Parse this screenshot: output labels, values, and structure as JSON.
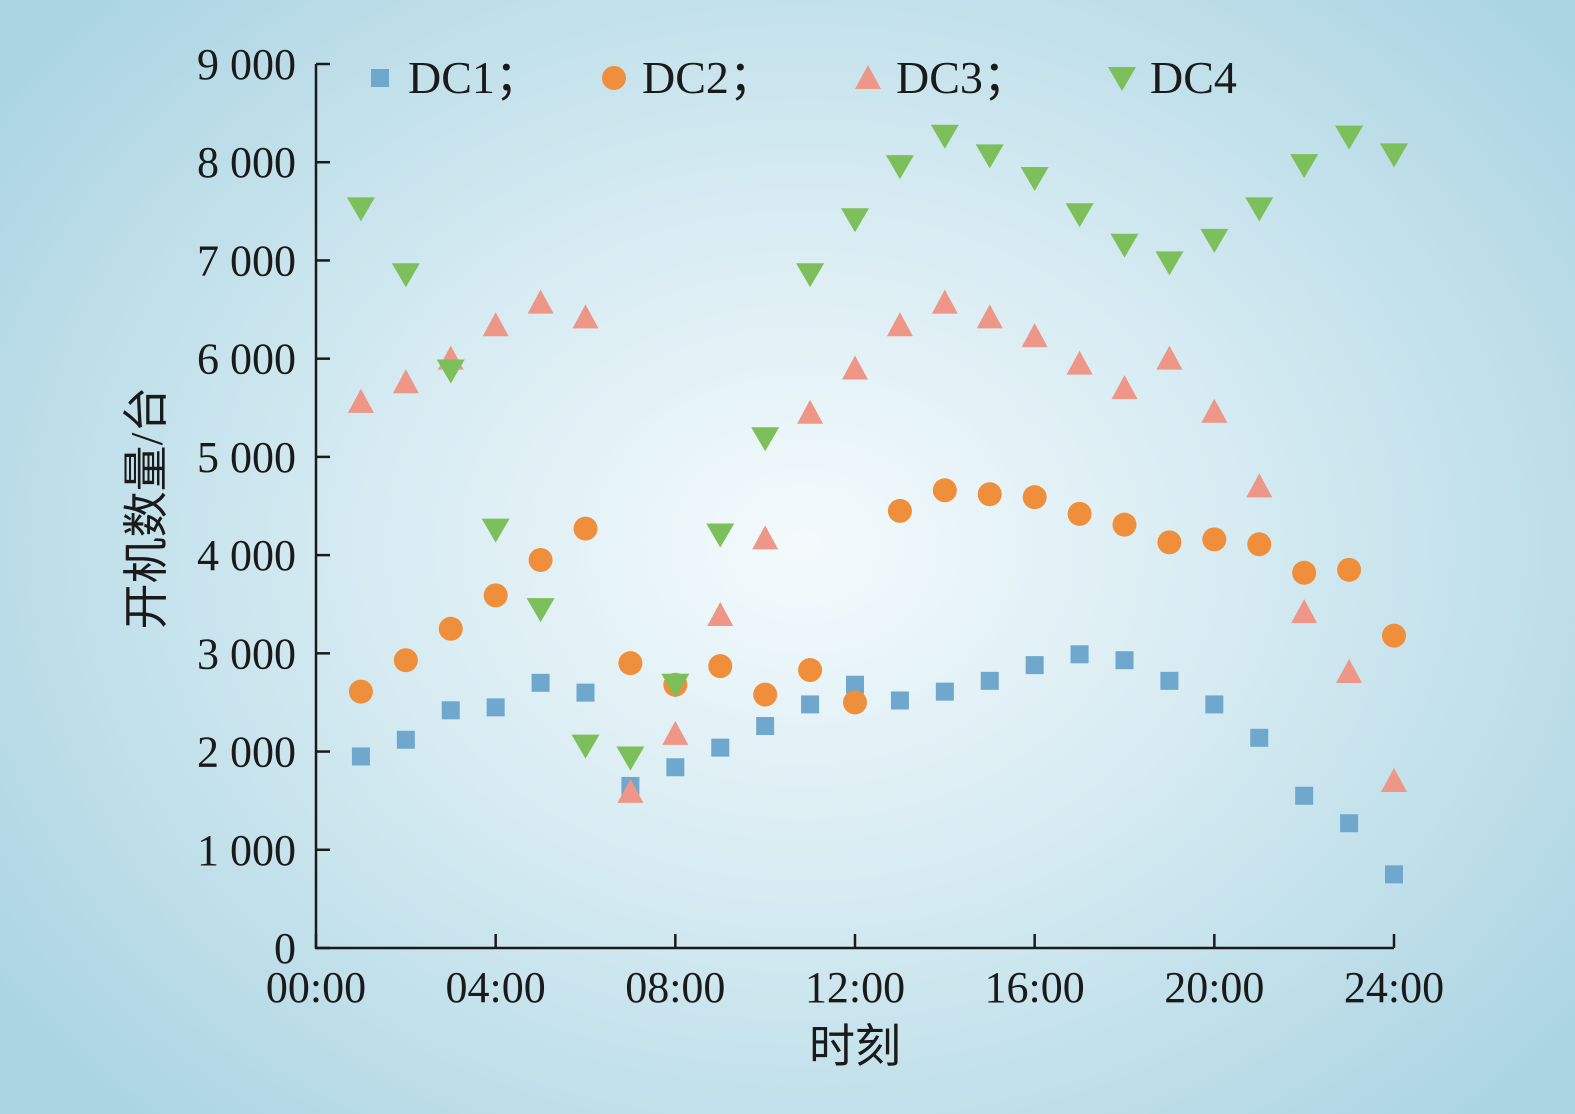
{
  "chart_data": {
    "type": "scatter",
    "title": "",
    "xlabel": "时刻",
    "ylabel": "开机数量/台",
    "xlim": [
      0,
      24
    ],
    "ylim": [
      0,
      9000
    ],
    "x_tick_labels": [
      "00:00",
      "04:00",
      "08:00",
      "12:00",
      "16:00",
      "20:00",
      "24:00"
    ],
    "y_tick_labels": [
      "0",
      "1 000",
      "2 000",
      "3 000",
      "4 000",
      "5 000",
      "6 000",
      "7 000",
      "8 000",
      "9 000"
    ],
    "grid": false,
    "legend_position": "top",
    "x": [
      1,
      2,
      3,
      4,
      5,
      6,
      7,
      8,
      9,
      10,
      11,
      12,
      13,
      14,
      15,
      16,
      17,
      18,
      19,
      20,
      21,
      22,
      23,
      24
    ],
    "series": [
      {
        "name": "DC1；",
        "marker": "square",
        "color": "#6fa8cc",
        "values": [
          1950,
          2120,
          2420,
          2450,
          2700,
          2600,
          1650,
          1840,
          2040,
          2260,
          2480,
          2680,
          2520,
          2610,
          2720,
          2880,
          2990,
          2930,
          2720,
          2480,
          2140,
          1550,
          1270,
          750
        ]
      },
      {
        "name": "DC2；",
        "marker": "circle",
        "color": "#ef8e3b",
        "values": [
          2610,
          2930,
          3250,
          3590,
          3950,
          4270,
          2900,
          2680,
          2870,
          2580,
          2830,
          2500,
          4450,
          4660,
          4620,
          4590,
          4420,
          4310,
          4130,
          4160,
          4110,
          3820,
          3850,
          3180
        ]
      },
      {
        "name": "DC3；",
        "marker": "triangle-up",
        "color": "#ee9688",
        "values": [
          5560,
          5760,
          6000,
          6340,
          6570,
          6420,
          1590,
          2180,
          3390,
          4170,
          5450,
          5900,
          6340,
          6570,
          6420,
          6230,
          5950,
          5700,
          6000,
          5460,
          4700,
          3420,
          2810,
          1700
        ]
      },
      {
        "name": "DC4",
        "marker": "triangle-down",
        "color": "#7dbf5a",
        "values": [
          7530,
          6860,
          5880,
          4260,
          3450,
          2060,
          1940,
          2680,
          4210,
          5190,
          6860,
          7420,
          7960,
          8270,
          8070,
          7840,
          7470,
          7160,
          6980,
          7210,
          7530,
          7970,
          8260,
          8080
        ]
      }
    ]
  }
}
